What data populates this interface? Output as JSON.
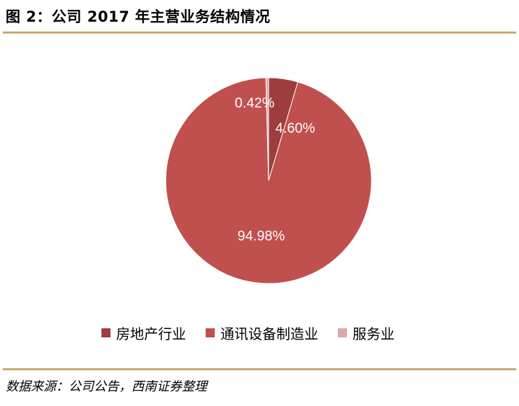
{
  "header": {
    "title": "图 2：公司 2017 年主营业务结构情况"
  },
  "footer": {
    "source": "数据来源：公司公告，西南证券整理"
  },
  "chart_data": {
    "type": "pie",
    "title": "",
    "categories": [
      "房地产行业",
      "通讯设备制造业",
      "服务业"
    ],
    "values": [
      4.6,
      94.98,
      0.42
    ],
    "labels": [
      "4.60%",
      "94.98%",
      "0.42%"
    ],
    "colors": [
      "#9e3d3d",
      "#c0504d",
      "#dba9a8"
    ],
    "start": "12 o'clock",
    "direction": "clockwise",
    "legend_position": "bottom"
  }
}
